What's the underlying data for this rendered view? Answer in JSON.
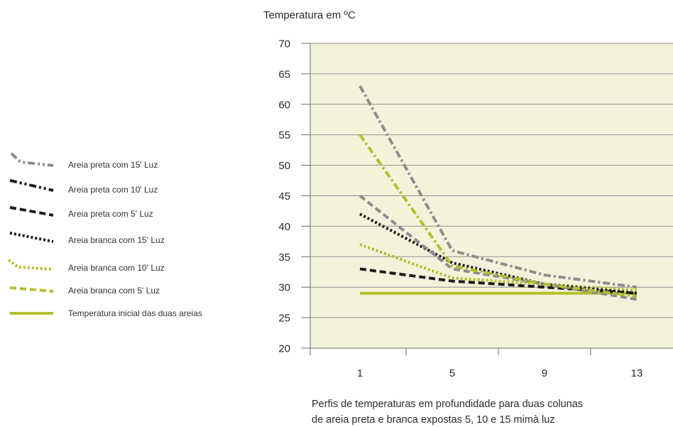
{
  "chart_data": {
    "type": "line",
    "ylabel": "Temperatura em ºC",
    "caption": [
      "Perfis de temperaturas em profundidade para duas colunas",
      "de areia preta e branca expostas 5, 10 e 15 mimà luz"
    ],
    "x": [
      1,
      5,
      9,
      13
    ],
    "xlim": [
      -1,
      15
    ],
    "ylim": [
      20,
      70
    ],
    "yticks": [
      20,
      25,
      30,
      35,
      40,
      45,
      50,
      55,
      60,
      65,
      70
    ],
    "grid": "horizontal",
    "legend_position": "left",
    "plot_background": "#f3f3dc",
    "series": [
      {
        "name": "Areia preta com 15' Luz",
        "values": [
          63,
          36,
          32,
          30
        ],
        "color": "#8c8c8c",
        "style": "dash-dot",
        "legend_color": "#8c8c8c",
        "legend_style": "dash-dot-dot"
      },
      {
        "name": "Areia preta com 10' Luz",
        "values": [
          55,
          33.5,
          30.5,
          28.5
        ],
        "color": "#b4bf2c",
        "style": "dash-dot",
        "legend_color": "#1c1c1c",
        "legend_style": "dash-dot-dot"
      },
      {
        "name": "Areia preta com 5' Luz",
        "values": [
          45,
          33,
          30.5,
          28
        ],
        "color": "#8c8c8c",
        "style": "dashed",
        "legend_color": "#1c1c1c",
        "legend_style": "dashed"
      },
      {
        "name": "Areia branca com 15' Luz",
        "values": [
          42,
          34,
          30.5,
          29
        ],
        "color": "#1c1c1c",
        "style": "dotted",
        "legend_color": "#1c1c1c",
        "legend_style": "dotted"
      },
      {
        "name": "Areia branca com 10' Luz",
        "values": [
          37,
          31.5,
          30.5,
          29.5
        ],
        "color": "#b4bf2c",
        "style": "dotted",
        "legend_color": "#b4bf2c",
        "legend_style": "dotted"
      },
      {
        "name": "Areia branca com 5' Luz",
        "values": [
          33,
          31,
          30,
          29
        ],
        "color": "#1c1c1c",
        "style": "dashed",
        "legend_color": "#b4bf2c",
        "legend_style": "dashed"
      },
      {
        "name": "Temperatura inicial das duas areias",
        "values": [
          29,
          29,
          29,
          29
        ],
        "color": "#b4bf2c",
        "style": "solid",
        "legend_color": "#b4bf2c",
        "legend_style": "solid"
      }
    ]
  }
}
